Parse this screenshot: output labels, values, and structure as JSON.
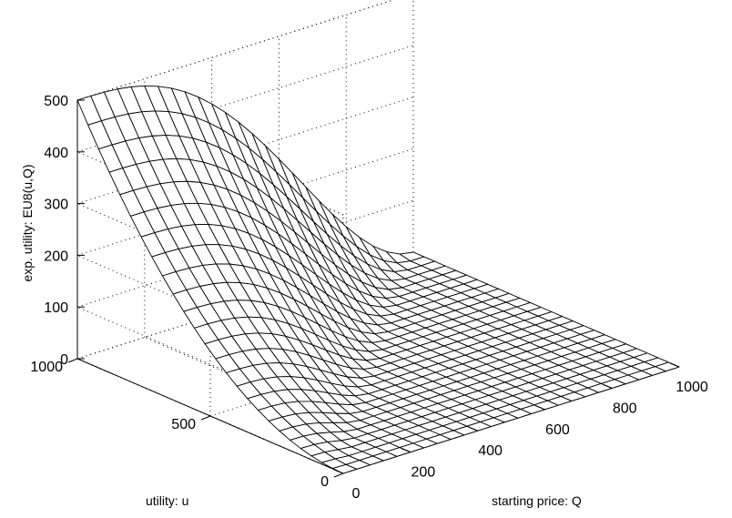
{
  "chart_data": {
    "type": "surface",
    "title": "",
    "xlabel": "starting price: Q",
    "ylabel": "utility: u",
    "zlabel": "exp. utility: EU8(u,Q)",
    "xlim": [
      0,
      1000
    ],
    "ylim": [
      0,
      1000
    ],
    "zlim": [
      0,
      500
    ],
    "x_ticks": [
      0,
      200,
      400,
      600,
      800,
      1000
    ],
    "y_ticks": [
      0,
      500,
      1000
    ],
    "z_ticks": [
      0,
      100,
      200,
      300,
      400,
      500
    ],
    "grid": true,
    "mesh": {
      "x_step": 40,
      "y_step": 40,
      "color": "#000000",
      "face_color": "#ffffff"
    },
    "surface_points": [
      {
        "u": 1000,
        "Q": 0,
        "EU": 500
      },
      {
        "u": 1000,
        "Q": 400,
        "EU": 408
      },
      {
        "u": 1000,
        "Q": 800,
        "EU": 62
      },
      {
        "u": 1000,
        "Q": 1000,
        "EU": 0
      },
      {
        "u": 500,
        "Q": 0,
        "EU": 125
      },
      {
        "u": 500,
        "Q": 500,
        "EU": 0
      },
      {
        "u": 0,
        "Q": 0,
        "EU": 0
      },
      {
        "u": 0,
        "Q": 1000,
        "EU": 0
      }
    ]
  }
}
